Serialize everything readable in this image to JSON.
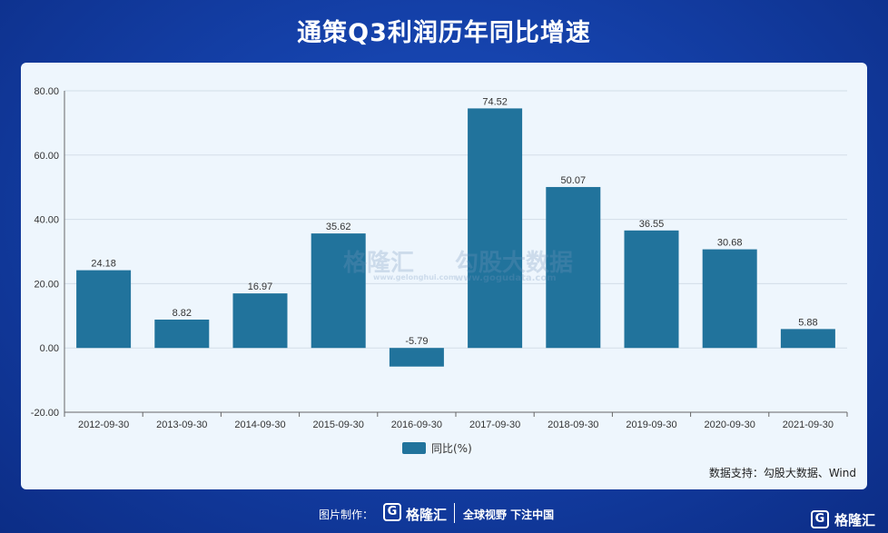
{
  "title": "通策Q3利润历年同比增速",
  "chart_data": {
    "type": "bar",
    "categories": [
      "2012-09-30",
      "2013-09-30",
      "2014-09-30",
      "2015-09-30",
      "2016-09-30",
      "2017-09-30",
      "2018-09-30",
      "2019-09-30",
      "2020-09-30",
      "2021-09-30"
    ],
    "series": [
      {
        "name": "同比(%)",
        "values": [
          24.18,
          8.82,
          16.97,
          35.62,
          -5.79,
          74.52,
          50.07,
          36.55,
          30.68,
          5.88
        ]
      }
    ],
    "value_labels": [
      "24.18",
      "8.82",
      "16.97",
      "35.62",
      "-5.79",
      "74.52",
      "50.07",
      "36.55",
      "30.68",
      "5.88"
    ],
    "yticks": [
      "80.00",
      "60.00",
      "40.00",
      "20.00",
      "0.00",
      "-20.00"
    ],
    "ylim": [
      -20,
      80
    ],
    "grid": true,
    "legend_position": "bottom-center",
    "colors": {
      "bar": "#21739c",
      "grid": "#d3dde8",
      "axis": "#666666"
    }
  },
  "source": "数据支持：勾股大数据、Wind",
  "watermark": {
    "brand": "格隆汇",
    "brand_url": "www.gelonghui.com",
    "data": "勾股大数据",
    "data_url": "www.gogudata.com"
  },
  "footer": {
    "made_by": "图片制作：",
    "brand": "格隆汇",
    "slogan": "全球视野 下注中国",
    "logo_letter": "G"
  },
  "corner": {
    "logo_letter": "G",
    "brand": "格隆汇"
  }
}
